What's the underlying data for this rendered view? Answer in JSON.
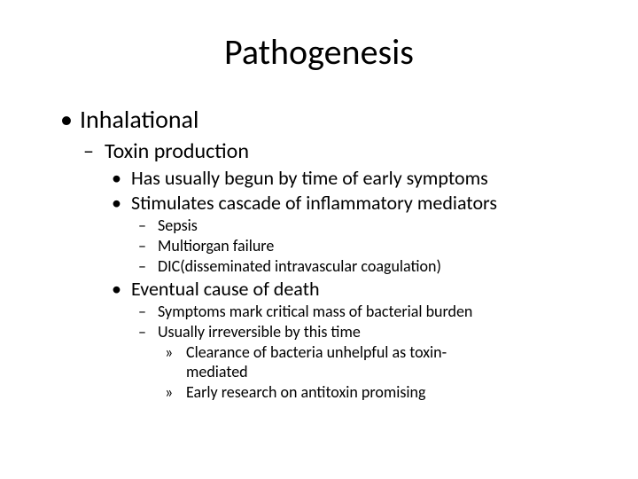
{
  "type": "slide",
  "background_color": "#ffffff",
  "text_color": "#000000",
  "font_family": "Calibri",
  "title": {
    "text": "Pathogenesis",
    "fontsize": 40,
    "align": "center",
    "weight": "normal"
  },
  "bullets": {
    "dot": "•",
    "dash": "–",
    "raquo": "»"
  },
  "outline": {
    "l1": {
      "text": "Inhalational",
      "fontsize": 28
    },
    "l2": {
      "text": "Toxin production",
      "fontsize": 24
    },
    "l3a": {
      "text": "Has usually begun by time of early symptoms",
      "fontsize": 22
    },
    "l3b": {
      "text": "Stimulates cascade of inflammatory mediators",
      "fontsize": 22
    },
    "l4a": {
      "text": "Sepsis",
      "fontsize": 18
    },
    "l4b": {
      "text": "Multiorgan failure",
      "fontsize": 18
    },
    "l4c": {
      "text": "DIC(disseminated intravascular coagulation)",
      "fontsize": 18
    },
    "l3c": {
      "text": "Eventual cause of death",
      "fontsize": 22
    },
    "l4d": {
      "text": "Symptoms mark critical mass of bacterial burden",
      "fontsize": 18
    },
    "l4e": {
      "text": "Usually irreversible by this time",
      "fontsize": 18
    },
    "l5a": {
      "text": "Clearance of bacteria unhelpful as toxin-",
      "fontsize": 18
    },
    "l5a_cont": {
      "text": "mediated",
      "fontsize": 18
    },
    "l5b": {
      "text": "Early research on antitoxin promising",
      "fontsize": 18
    }
  }
}
